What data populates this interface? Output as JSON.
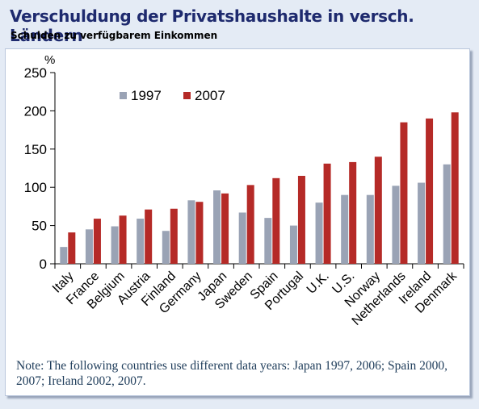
{
  "header": {
    "title": "Verschuldung der Privatshaushalte in versch. Ländern",
    "subtitle": "Schulden zu verfügbarem Einkommen"
  },
  "note": "Note: The following countries use different data years: Japan 1997, 2006; Spain 2000, 2007; Ireland 2002, 2007.",
  "chart_data": {
    "type": "bar",
    "categories": [
      "Italy",
      "France",
      "Belgium",
      "Austria",
      "Finland",
      "Germany",
      "Japan",
      "Sweden",
      "Spain",
      "Portugal",
      "U.K.",
      "U.S.",
      "Norway",
      "Netherlands",
      "Ireland",
      "Denmark"
    ],
    "series": [
      {
        "name": "1997",
        "values": [
          22,
          45,
          49,
          59,
          43,
          83,
          96,
          67,
          60,
          50,
          80,
          90,
          90,
          102,
          106,
          130
        ],
        "color": "#9aa3b5"
      },
      {
        "name": "2007",
        "values": [
          41,
          59,
          63,
          71,
          72,
          81,
          92,
          103,
          112,
          115,
          131,
          133,
          140,
          185,
          190,
          198
        ],
        "color": "#b52a27"
      }
    ],
    "ylabel": "%",
    "ylim": [
      0,
      250
    ],
    "yticks": [
      0,
      50,
      100,
      150,
      200,
      250
    ],
    "grid": false,
    "legend": "top-left"
  }
}
